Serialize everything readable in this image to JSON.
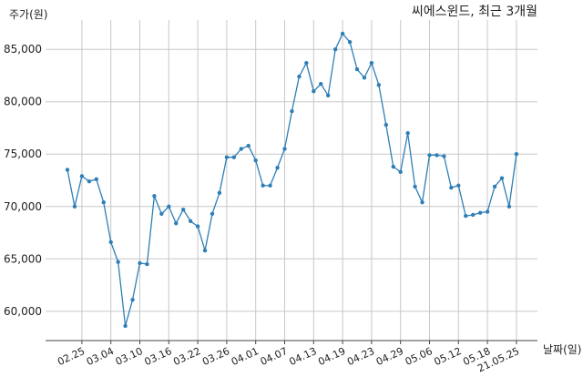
{
  "chart_data": {
    "type": "line",
    "title": "씨에스윈드, 최근 3개월",
    "ylabel": "주가(원)",
    "xlabel": "날짜(일)",
    "ylim": [
      57200,
      87800
    ],
    "yticks": [
      60000,
      65000,
      70000,
      75000,
      80000,
      85000
    ],
    "ytick_labels": [
      "60,000",
      "65,000",
      "70,000",
      "75,000",
      "80,000",
      "85,000"
    ],
    "xtick_index": [
      2,
      6,
      10,
      14,
      18,
      22,
      26,
      30,
      34,
      38,
      42,
      46,
      50,
      54,
      58,
      62
    ],
    "xtick_labels": [
      "02.25",
      "03.04",
      "03.10",
      "03.16",
      "03.22",
      "03.26",
      "04.01",
      "04.07",
      "04.13",
      "04.19",
      "04.23",
      "04.29",
      "05.06",
      "05.12",
      "05.18",
      "21.05.25"
    ],
    "grid": true,
    "series": [
      {
        "color": "#2e7fb6",
        "values": [
          73500,
          70000,
          72900,
          72400,
          72600,
          70400,
          66600,
          64700,
          58600,
          61100,
          64600,
          64500,
          71000,
          69300,
          70000,
          68400,
          69700,
          68600,
          68100,
          65800,
          69300,
          71300,
          74700,
          74700,
          75500,
          75800,
          74400,
          72000,
          72000,
          73700,
          75500,
          79100,
          82400,
          83700,
          81000,
          81700,
          80600,
          85000,
          86500,
          85700,
          83100,
          82300,
          83700,
          81600,
          77800,
          73800,
          73300,
          77000,
          71900,
          70400,
          74900,
          74900,
          74800,
          71800,
          72000,
          69100,
          69200,
          69400,
          69500,
          71900,
          72700,
          70000,
          75000
        ]
      }
    ]
  }
}
